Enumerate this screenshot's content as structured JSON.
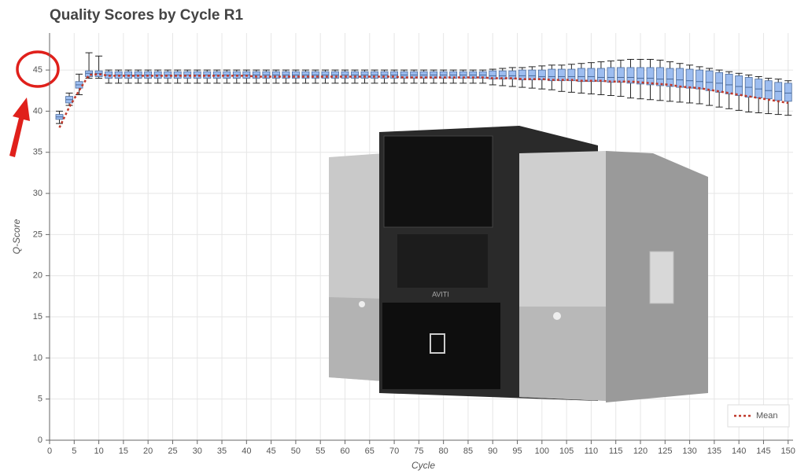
{
  "chart_data": {
    "type": "box",
    "title": "Quality Scores by Cycle R1",
    "x_label": "Cycle",
    "y_label": "Q-Score",
    "device_label": "AVITI",
    "xlim": [
      0,
      151
    ],
    "ylim": [
      0,
      49.5
    ],
    "xticks": [
      0,
      5,
      10,
      15,
      20,
      25,
      30,
      35,
      40,
      45,
      50,
      55,
      60,
      65,
      70,
      75,
      80,
      85,
      90,
      95,
      100,
      105,
      110,
      115,
      120,
      125,
      130,
      135,
      140,
      145,
      150
    ],
    "yticks": [
      0,
      5,
      10,
      15,
      20,
      25,
      30,
      35,
      40,
      45
    ],
    "grid": true,
    "box_color": "#9dbdf0",
    "box_edge_color": "#4a6a9a",
    "x": [
      2,
      4,
      6,
      8,
      10,
      12,
      14,
      16,
      18,
      20,
      22,
      24,
      26,
      28,
      30,
      32,
      34,
      36,
      38,
      40,
      42,
      44,
      46,
      48,
      50,
      52,
      54,
      56,
      58,
      60,
      62,
      64,
      66,
      68,
      70,
      72,
      74,
      76,
      78,
      80,
      82,
      84,
      86,
      88,
      90,
      92,
      94,
      96,
      98,
      100,
      102,
      104,
      106,
      108,
      110,
      112,
      114,
      116,
      118,
      120,
      122,
      124,
      126,
      128,
      130,
      132,
      134,
      136,
      138,
      140,
      142,
      144,
      146,
      148,
      150
    ],
    "whisker_low": [
      38.5,
      40.7,
      42.0,
      44.0,
      44.0,
      43.4,
      43.4,
      43.4,
      43.4,
      43.4,
      43.4,
      43.4,
      43.4,
      43.4,
      43.4,
      43.4,
      43.4,
      43.4,
      43.4,
      43.4,
      43.4,
      43.4,
      43.4,
      43.4,
      43.4,
      43.4,
      43.4,
      43.4,
      43.4,
      43.4,
      43.4,
      43.4,
      43.4,
      43.4,
      43.4,
      43.4,
      43.4,
      43.4,
      43.4,
      43.4,
      43.4,
      43.4,
      43.4,
      43.4,
      43.2,
      43.1,
      43.0,
      42.9,
      42.8,
      42.7,
      42.6,
      42.4,
      42.3,
      42.2,
      42.1,
      42.0,
      41.9,
      41.8,
      41.6,
      41.5,
      41.4,
      41.3,
      41.2,
      41.1,
      41.0,
      40.9,
      40.7,
      40.5,
      40.3,
      40.1,
      39.9,
      39.8,
      39.7,
      39.6,
      39.5
    ],
    "q1": [
      39.0,
      41.0,
      42.8,
      44.2,
      44.2,
      44.0,
      44.0,
      44.0,
      44.0,
      44.0,
      44.0,
      44.0,
      44.0,
      44.0,
      44.0,
      44.0,
      44.0,
      44.0,
      44.0,
      44.0,
      44.0,
      44.0,
      44.0,
      44.0,
      44.0,
      44.0,
      44.0,
      44.0,
      44.0,
      44.0,
      44.0,
      44.0,
      44.0,
      44.0,
      44.0,
      44.0,
      44.0,
      44.0,
      44.0,
      44.0,
      44.0,
      44.0,
      44.0,
      44.0,
      43.9,
      43.9,
      43.9,
      43.8,
      43.8,
      43.8,
      43.7,
      43.7,
      43.7,
      43.6,
      43.6,
      43.6,
      43.5,
      43.5,
      43.4,
      43.3,
      43.2,
      43.1,
      43.0,
      42.9,
      42.8,
      42.7,
      42.5,
      42.3,
      42.1,
      41.9,
      41.7,
      41.6,
      41.5,
      41.3,
      41.2
    ],
    "median": [
      39.3,
      41.4,
      43.2,
      44.6,
      44.6,
      44.4,
      44.4,
      44.4,
      44.4,
      44.4,
      44.4,
      44.4,
      44.4,
      44.4,
      44.4,
      44.4,
      44.4,
      44.4,
      44.4,
      44.4,
      44.4,
      44.4,
      44.4,
      44.4,
      44.4,
      44.4,
      44.4,
      44.4,
      44.4,
      44.4,
      44.4,
      44.4,
      44.4,
      44.4,
      44.4,
      44.4,
      44.4,
      44.4,
      44.4,
      44.4,
      44.4,
      44.4,
      44.4,
      44.4,
      44.3,
      44.3,
      44.3,
      44.3,
      44.3,
      44.2,
      44.2,
      44.2,
      44.2,
      44.2,
      44.2,
      44.1,
      44.1,
      44.1,
      44.1,
      44.0,
      44.0,
      43.9,
      43.9,
      43.8,
      43.7,
      43.6,
      43.5,
      43.4,
      43.2,
      43.0,
      42.9,
      42.7,
      42.5,
      42.4,
      42.2
    ],
    "q3": [
      39.6,
      41.8,
      43.6,
      44.9,
      44.9,
      44.8,
      44.8,
      44.8,
      44.8,
      44.8,
      44.8,
      44.8,
      44.8,
      44.8,
      44.8,
      44.8,
      44.8,
      44.8,
      44.8,
      44.8,
      44.8,
      44.8,
      44.8,
      44.8,
      44.8,
      44.8,
      44.8,
      44.8,
      44.8,
      44.8,
      44.8,
      44.8,
      44.8,
      44.8,
      44.8,
      44.8,
      44.8,
      44.8,
      44.8,
      44.8,
      44.8,
      44.8,
      44.8,
      44.8,
      44.9,
      44.9,
      44.9,
      45.0,
      45.0,
      45.0,
      45.1,
      45.1,
      45.1,
      45.2,
      45.2,
      45.2,
      45.3,
      45.3,
      45.3,
      45.3,
      45.3,
      45.3,
      45.2,
      45.2,
      45.1,
      45.0,
      44.9,
      44.7,
      44.5,
      44.3,
      44.1,
      43.9,
      43.7,
      43.5,
      43.4
    ],
    "whisker_high": [
      40.0,
      42.2,
      44.5,
      47.1,
      46.7,
      45.0,
      45.0,
      45.0,
      45.0,
      45.0,
      45.0,
      45.0,
      45.0,
      45.0,
      45.0,
      45.0,
      45.0,
      45.0,
      45.0,
      45.0,
      45.0,
      45.0,
      45.0,
      45.0,
      45.0,
      45.0,
      45.0,
      45.0,
      45.0,
      45.0,
      45.0,
      45.0,
      45.0,
      45.0,
      45.0,
      45.0,
      45.0,
      45.0,
      45.0,
      45.0,
      45.0,
      45.0,
      45.0,
      45.0,
      45.1,
      45.2,
      45.3,
      45.3,
      45.4,
      45.5,
      45.6,
      45.6,
      45.7,
      45.8,
      45.9,
      46.0,
      46.1,
      46.2,
      46.3,
      46.3,
      46.3,
      46.2,
      46.0,
      45.8,
      45.6,
      45.4,
      45.2,
      45.0,
      44.8,
      44.6,
      44.4,
      44.2,
      44.0,
      43.9,
      43.7
    ],
    "mean": {
      "name": "Mean",
      "color": "#c0392b",
      "values": [
        38.0,
        40.5,
        42.5,
        44.4,
        44.5,
        44.3,
        44.3,
        44.3,
        44.3,
        44.3,
        44.3,
        44.3,
        44.3,
        44.3,
        44.3,
        44.3,
        44.3,
        44.3,
        44.3,
        44.3,
        44.2,
        44.2,
        44.2,
        44.2,
        44.2,
        44.2,
        44.2,
        44.2,
        44.2,
        44.2,
        44.2,
        44.2,
        44.2,
        44.2,
        44.2,
        44.1,
        44.1,
        44.1,
        44.1,
        44.1,
        44.1,
        44.1,
        44.1,
        44.1,
        44.0,
        44.0,
        44.0,
        43.9,
        43.9,
        43.9,
        43.8,
        43.8,
        43.8,
        43.7,
        43.7,
        43.7,
        43.6,
        43.6,
        43.6,
        43.5,
        43.4,
        43.3,
        43.2,
        43.0,
        42.9,
        42.8,
        42.6,
        42.4,
        42.2,
        42.0,
        41.8,
        41.6,
        41.4,
        41.2,
        41.0
      ]
    }
  }
}
